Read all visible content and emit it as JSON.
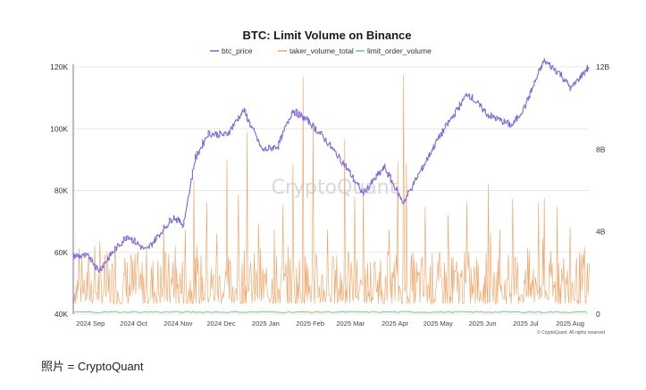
{
  "chart_data": {
    "type": "line",
    "title": "BTC: Limit Volume on Binance",
    "legend": {
      "placement": "top-center",
      "items": [
        {
          "name": "btc_price",
          "color": "#7b68d9"
        },
        {
          "name": "taker_volume_total",
          "color": "#f0a060"
        },
        {
          "name": "limit_order_volume",
          "color": "#7bc47b"
        }
      ]
    },
    "grid": true,
    "x": {
      "type": "date",
      "range": [
        "2024-08-20",
        "2025-08-14"
      ],
      "tick_labels": [
        "2024 Sep",
        "2024 Oct",
        "2024 Nov",
        "2024 Dec",
        "2025 Jan",
        "2025 Feb",
        "2025 Mar",
        "2025 Apr",
        "2025 May",
        "2025 Jun",
        "2025 Jul",
        "2025 Aug"
      ],
      "tick_dates": [
        "2024-09-01",
        "2024-10-01",
        "2024-11-01",
        "2024-12-01",
        "2025-01-01",
        "2025-02-01",
        "2025-03-01",
        "2025-04-01",
        "2025-05-01",
        "2025-06-01",
        "2025-07-01",
        "2025-08-01"
      ]
    },
    "y_left": {
      "ylim": [
        40000,
        120000
      ],
      "tick_values": [
        40000,
        60000,
        80000,
        100000,
        120000
      ],
      "tick_labels": [
        "40K",
        "60K",
        "80K",
        "100K",
        "120K"
      ]
    },
    "y_right": {
      "ylim": [
        0,
        12000000000
      ],
      "tick_values": [
        0,
        4000000000,
        8000000000,
        12000000000
      ],
      "tick_labels": [
        "0",
        "4B",
        "8B",
        "12B"
      ]
    },
    "series": [
      {
        "name": "btc_price",
        "axis": "left",
        "color": "#7b68d9",
        "dates": [
          "2024-08-20",
          "2024-09-01",
          "2024-09-07",
          "2024-09-15",
          "2024-09-27",
          "2024-10-10",
          "2024-10-29",
          "2024-11-05",
          "2024-11-13",
          "2024-11-22",
          "2024-12-05",
          "2024-12-17",
          "2024-12-30",
          "2025-01-10",
          "2025-01-20",
          "2025-01-31",
          "2025-02-10",
          "2025-02-25",
          "2025-03-10",
          "2025-03-25",
          "2025-04-07",
          "2025-04-20",
          "2025-05-01",
          "2025-05-22",
          "2025-06-05",
          "2025-06-22",
          "2025-07-01",
          "2025-07-14",
          "2025-07-25",
          "2025-08-02",
          "2025-08-13"
        ],
        "values": [
          59000,
          58500,
          54000,
          59000,
          65500,
          60500,
          71500,
          69000,
          90000,
          98500,
          98000,
          106000,
          93000,
          94500,
          106000,
          102500,
          97500,
          88500,
          79000,
          87500,
          76000,
          87000,
          96500,
          111500,
          104500,
          101000,
          107500,
          122000,
          118000,
          113000,
          119500
        ]
      },
      {
        "name": "taker_volume_total",
        "axis": "right",
        "color": "#f0a060",
        "baseline": 500000000,
        "spikes": [
          {
            "date": "2024-08-24",
            "value": 3200000000
          },
          {
            "date": "2024-09-04",
            "value": 3300000000
          },
          {
            "date": "2024-09-18",
            "value": 3400000000
          },
          {
            "date": "2024-09-29",
            "value": 2900000000
          },
          {
            "date": "2024-10-10",
            "value": 3100000000
          },
          {
            "date": "2024-10-22",
            "value": 4100000000
          },
          {
            "date": "2024-10-30",
            "value": 3300000000
          },
          {
            "date": "2024-11-06",
            "value": 4100000000
          },
          {
            "date": "2024-11-12",
            "value": 6500000000
          },
          {
            "date": "2024-11-21",
            "value": 5400000000
          },
          {
            "date": "2024-11-28",
            "value": 3900000000
          },
          {
            "date": "2024-12-05",
            "value": 7500000000
          },
          {
            "date": "2024-12-13",
            "value": 5800000000
          },
          {
            "date": "2024-12-19",
            "value": 8800000000
          },
          {
            "date": "2024-12-27",
            "value": 4400000000
          },
          {
            "date": "2025-01-07",
            "value": 4100000000
          },
          {
            "date": "2025-01-13",
            "value": 5300000000
          },
          {
            "date": "2025-01-20",
            "value": 7300000000
          },
          {
            "date": "2025-01-27",
            "value": 11500000000
          },
          {
            "date": "2025-02-03",
            "value": 9300000000
          },
          {
            "date": "2025-02-13",
            "value": 4100000000
          },
          {
            "date": "2025-02-25",
            "value": 8500000000
          },
          {
            "date": "2025-03-04",
            "value": 5700000000
          },
          {
            "date": "2025-03-10",
            "value": 6100000000
          },
          {
            "date": "2025-03-28",
            "value": 4100000000
          },
          {
            "date": "2025-04-03",
            "value": 7400000000
          },
          {
            "date": "2025-04-07",
            "value": 11600000000
          },
          {
            "date": "2025-04-09",
            "value": 7300000000
          },
          {
            "date": "2025-04-22",
            "value": 5200000000
          },
          {
            "date": "2025-05-08",
            "value": 4800000000
          },
          {
            "date": "2025-05-21",
            "value": 5400000000
          },
          {
            "date": "2025-06-05",
            "value": 6300000000
          },
          {
            "date": "2025-06-13",
            "value": 4100000000
          },
          {
            "date": "2025-06-22",
            "value": 5600000000
          },
          {
            "date": "2025-07-10",
            "value": 5400000000
          },
          {
            "date": "2025-07-14",
            "value": 5600000000
          },
          {
            "date": "2025-07-23",
            "value": 5200000000
          },
          {
            "date": "2025-08-01",
            "value": 4200000000
          }
        ]
      },
      {
        "name": "limit_order_volume",
        "axis": "right",
        "color": "#7bc47b",
        "typical_value": 100000000
      }
    ],
    "watermark": "CryptoQuant",
    "footnote": "© CryptoQuant. All rights reserved"
  },
  "caption": "照片 = CryptoQuant"
}
